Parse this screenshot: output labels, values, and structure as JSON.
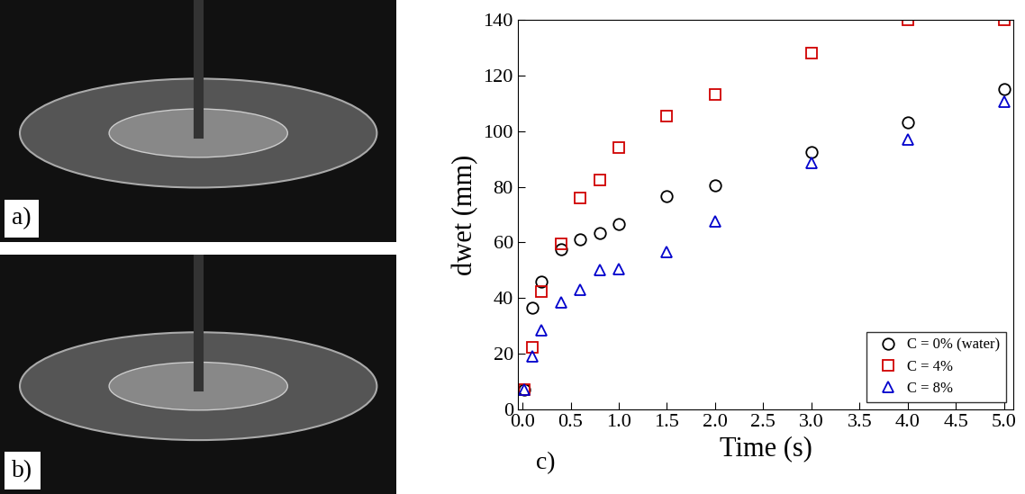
{
  "panels": [
    "a)",
    "b)"
  ],
  "chart_data": {
    "type": "scatter",
    "annotation": "c)",
    "x_label": "Time (s)",
    "y_label": "dwet (mm)",
    "x": [
      0.02,
      0.1,
      0.2,
      0.4,
      0.6,
      0.8,
      1.0,
      1.5,
      2.0,
      3.0,
      4.0,
      5.0
    ],
    "series": [
      {
        "name": "C = 0% (water)",
        "color": "#000000",
        "marker": "circle",
        "values": [
          7,
          36.5,
          46,
          57.5,
          61,
          63.5,
          66.5,
          76.5,
          80.5,
          92.5,
          103,
          115
        ]
      },
      {
        "name": "C = 4%",
        "color": "#d00000",
        "marker": "square",
        "values": [
          7,
          22.5,
          42.5,
          59.5,
          76,
          82.5,
          94,
          105.5,
          113,
          128,
          140,
          140
        ]
      },
      {
        "name": "C = 8%",
        "color": "#0000cc",
        "marker": "triangle",
        "values": [
          7,
          19,
          28.5,
          38.5,
          43,
          50,
          50.5,
          56.5,
          67.5,
          88.5,
          97,
          110.5
        ]
      }
    ],
    "xlim": [
      -0.05,
      5.1
    ],
    "xticks": [
      {
        "value": 0.0,
        "label": "0.0"
      },
      {
        "value": 0.5,
        "label": "0.5"
      },
      {
        "value": 1.0,
        "label": "1.0"
      },
      {
        "value": 1.5,
        "label": "1.5"
      },
      {
        "value": 2.0,
        "label": "2.0"
      },
      {
        "value": 2.5,
        "label": "2.5"
      },
      {
        "value": 3.0,
        "label": "3.0"
      },
      {
        "value": 3.5,
        "label": "3.5"
      },
      {
        "value": 4.0,
        "label": "4.0"
      },
      {
        "value": 4.5,
        "label": "4.5"
      },
      {
        "value": 5.0,
        "label": "5.0"
      }
    ],
    "ylim": [
      0,
      140
    ],
    "yticks": [
      0,
      20,
      40,
      60,
      80,
      100,
      120,
      140
    ],
    "legend": "lower right",
    "grid": false
  }
}
